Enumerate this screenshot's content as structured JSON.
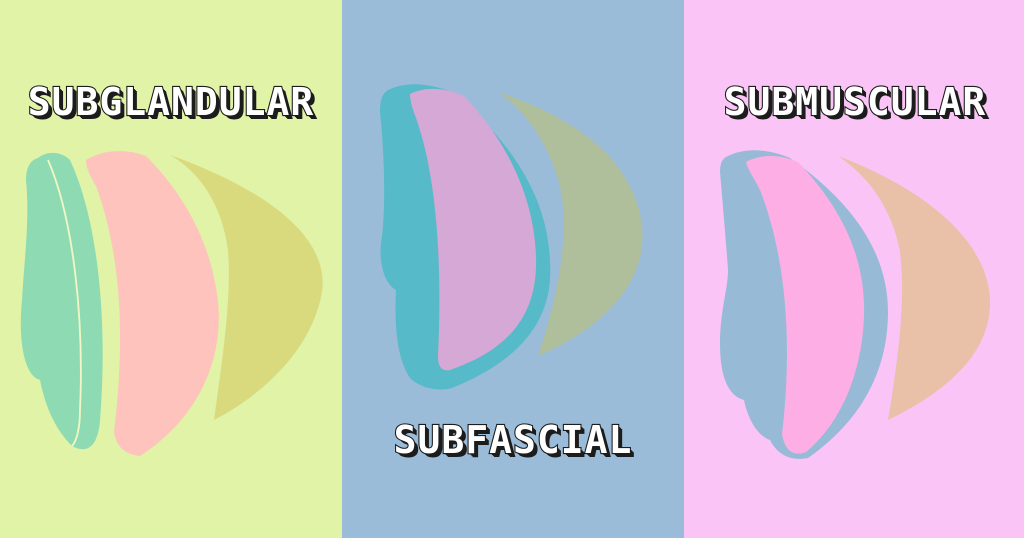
{
  "panels": [
    {
      "id": "subglandular",
      "label": "SUBGLANDULAR",
      "colors": {
        "background": "#e0f3a6",
        "muscle": "#8edbb3",
        "fascia": "#8edbb3",
        "implant": "#fdc3bc",
        "tissue": "#d9d97d"
      }
    },
    {
      "id": "subfascial",
      "label": "SUBFASCIAL",
      "colors": {
        "background": "#9bbcd8",
        "muscle": "#56bac9",
        "fascia": "#56bac9",
        "implant": "#d5a8d5",
        "tissue": "#afbe9b"
      }
    },
    {
      "id": "submuscular",
      "label": "SUBMUSCULAR",
      "colors": {
        "background": "#fbc4f6",
        "muscle": "#97bbd7",
        "fascia": "#97bbd7",
        "implant": "#fdaee5",
        "tissue": "#e9c1a8"
      }
    }
  ]
}
